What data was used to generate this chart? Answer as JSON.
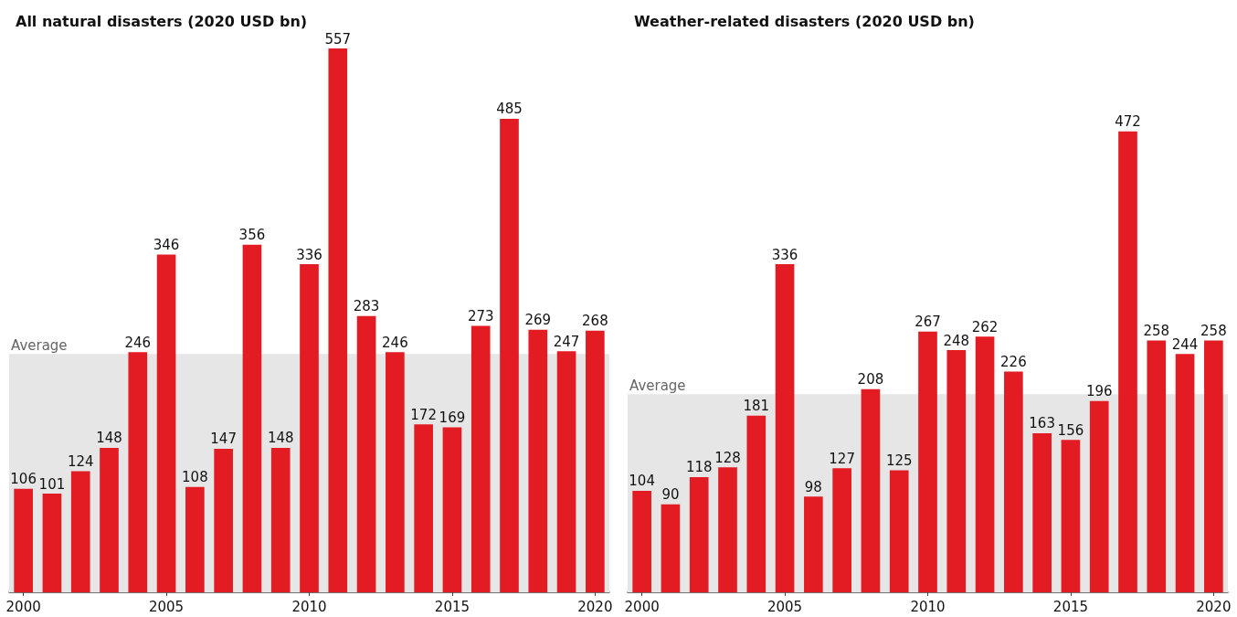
{
  "chart_data": [
    {
      "type": "bar",
      "title": "All natural disasters (2020 USD bn)",
      "categories": [
        "2000",
        null,
        null,
        null,
        null,
        "2005",
        null,
        null,
        null,
        null,
        "2010",
        null,
        null,
        null,
        null,
        "2015",
        null,
        null,
        null,
        null,
        "2020"
      ],
      "values": [
        106,
        101,
        124,
        148,
        246,
        346,
        108,
        147,
        356,
        148,
        336,
        557,
        283,
        246,
        172,
        169,
        273,
        485,
        269,
        247,
        268
      ],
      "color": "#e31b23",
      "data_labels": true,
      "bands": [
        {
          "axis": "y",
          "from": 0,
          "to": 244,
          "label": "Average",
          "color": "#e6e6e6"
        }
      ]
    },
    {
      "type": "bar",
      "title": "Weather-related disasters (2020 USD bn)",
      "categories": [
        "2000",
        null,
        null,
        null,
        null,
        "2005",
        null,
        null,
        null,
        null,
        "2010",
        null,
        null,
        null,
        null,
        "2015",
        null,
        null,
        null,
        null,
        "2020"
      ],
      "values": [
        104,
        90,
        118,
        128,
        181,
        336,
        98,
        127,
        208,
        125,
        267,
        248,
        262,
        226,
        163,
        156,
        196,
        472,
        258,
        244,
        258
      ],
      "color": "#e31b23",
      "data_labels": true,
      "bands": [
        {
          "axis": "y",
          "from": 0,
          "to": 203,
          "label": "Average",
          "color": "#e6e6e6"
        }
      ]
    }
  ]
}
